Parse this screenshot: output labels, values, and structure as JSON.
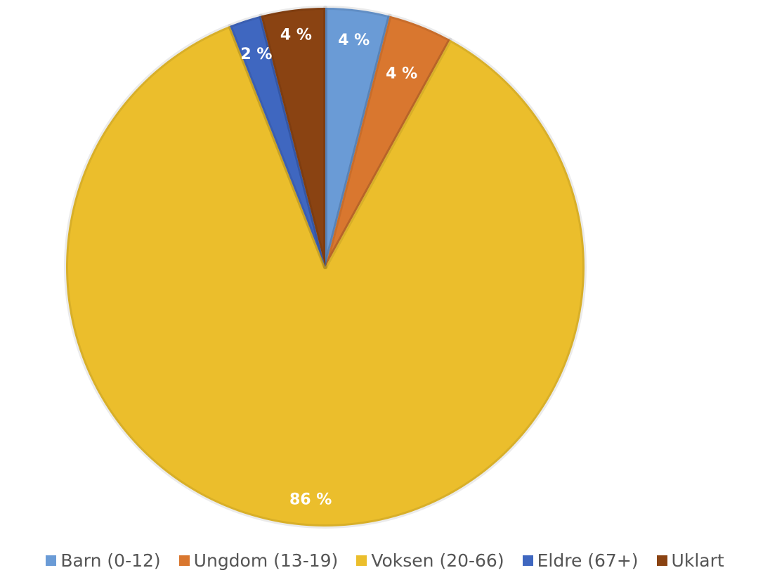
{
  "chart_data": {
    "type": "pie",
    "title": "",
    "categories": [
      "Barn (0-12)",
      "Ungdom (13-19)",
      "Voksen (20-66)",
      "Eldre (67+)",
      "Uklart"
    ],
    "values": [
      4,
      4,
      86,
      2,
      4
    ],
    "data_labels": [
      "4 %",
      "4 %",
      "86 %",
      "2 %",
      "4 %"
    ],
    "colors": [
      "#6A9BD6",
      "#D9772F",
      "#EBBE2C",
      "#3F67C0",
      "#8A4312"
    ],
    "legend_position": "bottom"
  }
}
